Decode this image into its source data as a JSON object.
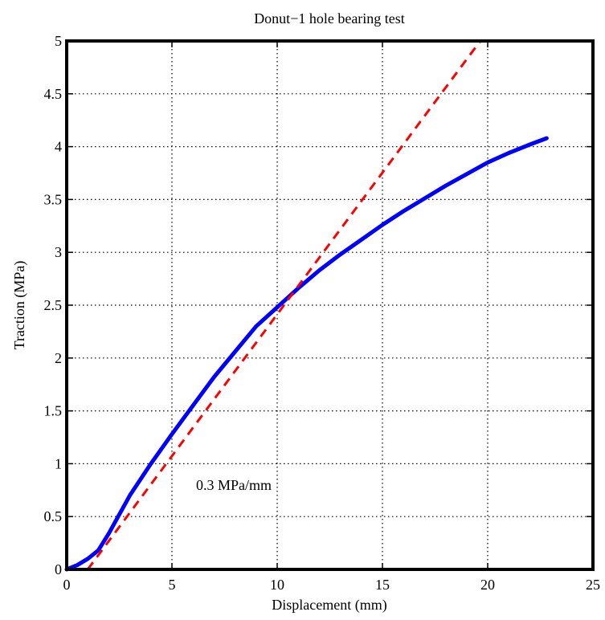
{
  "chart_data": {
    "type": "line",
    "title": "Donut−1 hole bearing test",
    "xlabel": "Displacement (mm)",
    "ylabel": "Traction (MPa)",
    "xlim": [
      0,
      25
    ],
    "ylim": [
      0,
      5
    ],
    "xticks": [
      0,
      5,
      10,
      15,
      20,
      25
    ],
    "xtick_labels": [
      "0",
      "5",
      "10",
      "15",
      "20",
      "25"
    ],
    "yticks": [
      0,
      0.5,
      1,
      1.5,
      2,
      2.5,
      3,
      3.5,
      4,
      4.5,
      5
    ],
    "ytick_labels": [
      "0",
      "0.5",
      "1",
      "1.5",
      "2",
      "2.5",
      "3",
      "3.5",
      "4",
      "4.5",
      "5"
    ],
    "grid": true,
    "annotation": "0.3 MPa/mm",
    "series": [
      {
        "style": "solid",
        "color": "#0000ff",
        "x": [
          0,
          0.5,
          1.0,
          1.5,
          2.0,
          2.5,
          3,
          4,
          5,
          6,
          7,
          8,
          9,
          10,
          11,
          12,
          13,
          14,
          15,
          16,
          17,
          18,
          19,
          20,
          21,
          22,
          22.8
        ],
        "y": [
          0,
          0.04,
          0.1,
          0.18,
          0.34,
          0.52,
          0.7,
          1.0,
          1.28,
          1.55,
          1.82,
          2.06,
          2.3,
          2.48,
          2.66,
          2.83,
          2.98,
          3.12,
          3.26,
          3.39,
          3.51,
          3.63,
          3.74,
          3.85,
          3.94,
          4.02,
          4.08
        ]
      },
      {
        "style": "dashed",
        "color": "#ff0000",
        "x": [
          1.0,
          19.65
        ],
        "y": [
          0,
          5.0
        ]
      }
    ]
  }
}
